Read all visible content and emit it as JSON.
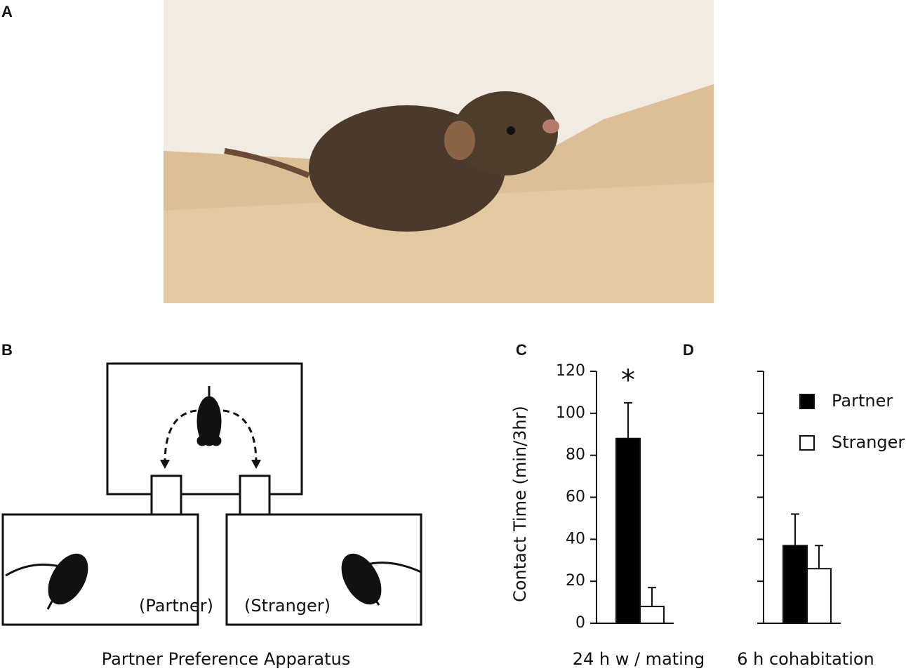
{
  "panels": {
    "a": "A",
    "b": "B"
  },
  "apparatus": {
    "partner_label": "(Partner)",
    "stranger_label": "(Stranger)",
    "caption": "Partner Preference Apparatus"
  },
  "chart_data": [
    {
      "type": "bar",
      "label": "C",
      "ylabel": "Contact Time (min/3hr)",
      "xlabel": "24 h w / mating",
      "ylim": [
        0,
        120
      ],
      "yticks": [
        0,
        20,
        40,
        60,
        80,
        100,
        120
      ],
      "ytick_labels": true,
      "annotation": "*",
      "series": [
        {
          "color": "#000000",
          "values": [
            88
          ],
          "errors": [
            17
          ]
        },
        {
          "color": "#ffffff",
          "values": [
            8
          ],
          "errors": [
            9
          ]
        }
      ]
    },
    {
      "type": "bar",
      "label": "D",
      "xlabel": "6 h cohabitation",
      "ylim": [
        0,
        120
      ],
      "yticks": [
        0,
        20,
        40,
        60,
        80,
        100,
        120
      ],
      "ytick_labels": false,
      "legend": "upper right",
      "series": [
        {
          "name": "Partner",
          "color": "#000000",
          "values": [
            37
          ],
          "errors": [
            15
          ]
        },
        {
          "name": "Stranger",
          "color": "#ffffff",
          "values": [
            26
          ],
          "errors": [
            11
          ]
        }
      ]
    }
  ]
}
